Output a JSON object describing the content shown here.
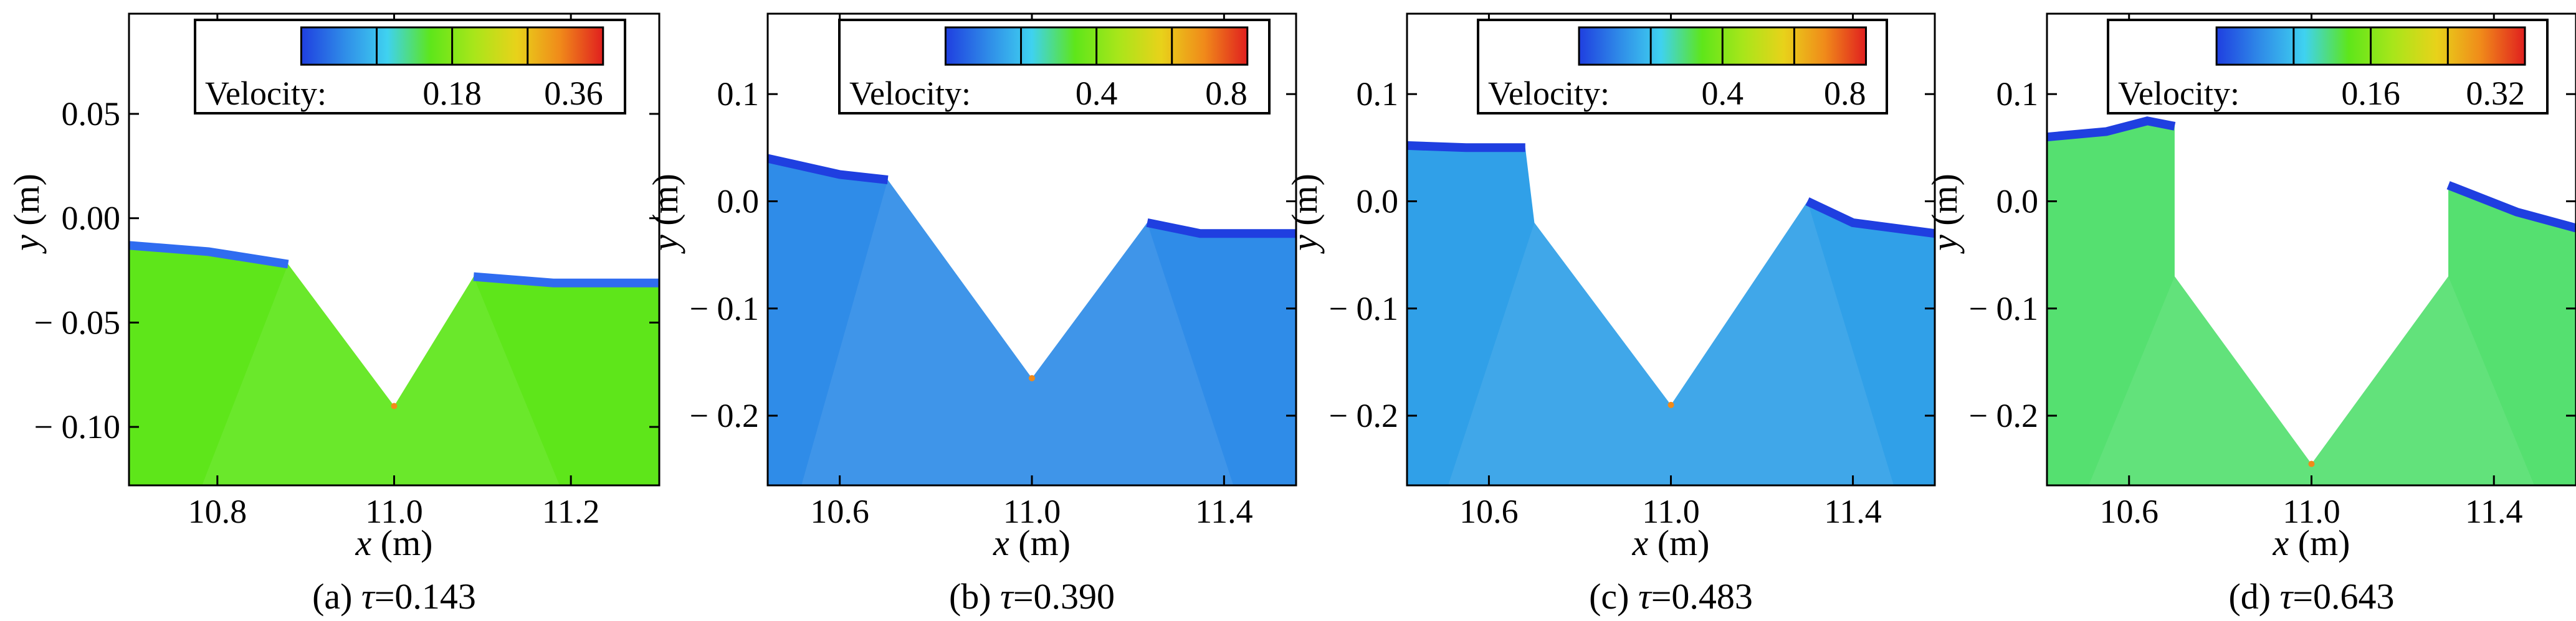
{
  "chart_data": [
    {
      "type": "heatmap",
      "caption_prefix": "(a) ",
      "caption_tau": "τ",
      "caption_value": "=0.143",
      "xlabel_var": "x",
      "xlabel_unit": " (m)",
      "ylabel_var": "y",
      "ylabel_unit": " (m)",
      "xlim": [
        10.7,
        11.3
      ],
      "ylim": [
        -0.128,
        0.098
      ],
      "xticks": [
        10.8,
        11.0,
        11.2
      ],
      "xtick_labels": [
        "10.8",
        "11.0",
        "11.2"
      ],
      "yticks": [
        0.05,
        0.0,
        -0.05,
        -0.1
      ],
      "ytick_labels": [
        "0.05",
        "0.00",
        "− 0.05",
        "− 0.10"
      ],
      "legend": {
        "title": "Velocity:",
        "ticks": [
          "0.18",
          "0.36"
        ],
        "range": [
          0,
          0.36
        ]
      },
      "colors": {
        "fill_main": "#5ee61a",
        "surface": "#2f6cf0"
      },
      "surface_left": [
        [
          10.7,
          -0.013
        ],
        [
          10.79,
          -0.016
        ],
        [
          10.88,
          -0.022
        ]
      ],
      "surface_right": [
        [
          11.09,
          -0.028
        ],
        [
          11.18,
          -0.031
        ],
        [
          11.3,
          -0.031
        ]
      ],
      "cavity": [
        [
          10.88,
          -0.022
        ],
        [
          11.0,
          -0.09
        ],
        [
          11.09,
          -0.028
        ]
      ]
    },
    {
      "type": "heatmap",
      "caption_prefix": "(b) ",
      "caption_tau": "τ",
      "caption_value": "=0.390",
      "xlabel_var": "x",
      "xlabel_unit": " (m)",
      "ylabel_var": "y",
      "ylabel_unit": " (m)",
      "xlim": [
        10.45,
        11.55
      ],
      "ylim": [
        -0.265,
        0.175
      ],
      "xticks": [
        10.6,
        11.0,
        11.4
      ],
      "xtick_labels": [
        "10.6",
        "11.0",
        "11.4"
      ],
      "yticks": [
        0.1,
        0.0,
        -0.1,
        -0.2
      ],
      "ytick_labels": [
        "0.1",
        "0.0",
        "− 0.1",
        "− 0.2"
      ],
      "legend": {
        "title": "Velocity:",
        "ticks": [
          "0.4",
          "0.8"
        ],
        "range": [
          0,
          0.8
        ]
      },
      "colors": {
        "fill_main": "#2f8ce8",
        "surface": "#1f3fe0"
      },
      "surface_left": [
        [
          10.45,
          0.04
        ],
        [
          10.6,
          0.025
        ],
        [
          10.7,
          0.02
        ]
      ],
      "surface_right": [
        [
          11.24,
          -0.02
        ],
        [
          11.35,
          -0.03
        ],
        [
          11.55,
          -0.03
        ]
      ],
      "cavity": [
        [
          10.7,
          0.02
        ],
        [
          11.0,
          -0.165
        ],
        [
          11.24,
          -0.02
        ]
      ]
    },
    {
      "type": "heatmap",
      "caption_prefix": "(c) ",
      "caption_tau": "τ",
      "caption_value": "=0.483",
      "xlabel_var": "x",
      "xlabel_unit": " (m)",
      "ylabel_var": "y",
      "ylabel_unit": " (m)",
      "xlim": [
        10.42,
        11.58
      ],
      "ylim": [
        -0.265,
        0.175
      ],
      "xticks": [
        10.6,
        11.0,
        11.4
      ],
      "xtick_labels": [
        "10.6",
        "11.0",
        "11.4"
      ],
      "yticks": [
        0.1,
        0.0,
        -0.1,
        -0.2
      ],
      "ytick_labels": [
        "0.1",
        "0.0",
        "− 0.1",
        "− 0.2"
      ],
      "legend": {
        "title": "Velocity:",
        "ticks": [
          "0.4",
          "0.8"
        ],
        "range": [
          0,
          0.8
        ]
      },
      "colors": {
        "fill_main": "#30a0e8",
        "surface": "#1f3fe0"
      },
      "surface_left": [
        [
          10.42,
          0.052
        ],
        [
          10.55,
          0.05
        ],
        [
          10.68,
          0.05
        ]
      ],
      "surface_right": [
        [
          11.3,
          0.0
        ],
        [
          11.4,
          -0.02
        ],
        [
          11.58,
          -0.03
        ]
      ],
      "cavity": [
        [
          10.7,
          -0.02
        ],
        [
          11.0,
          -0.19
        ],
        [
          11.3,
          0.0
        ]
      ]
    },
    {
      "type": "heatmap",
      "caption_prefix": "(d) ",
      "caption_tau": "τ",
      "caption_value": "=0.643",
      "xlabel_var": "x",
      "xlabel_unit": " (m)",
      "ylabel_var": "y",
      "ylabel_unit": " (m)",
      "xlim": [
        10.42,
        11.58
      ],
      "ylim": [
        -0.265,
        0.175
      ],
      "xticks": [
        10.6,
        11.0,
        11.4
      ],
      "xtick_labels": [
        "10.6",
        "11.0",
        "11.4"
      ],
      "yticks": [
        0.1,
        0.0,
        -0.1,
        -0.2
      ],
      "ytick_labels": [
        "0.1",
        "0.0",
        "− 0.1",
        "− 0.2"
      ],
      "legend": {
        "title": "Velocity:",
        "ticks": [
          "0.16",
          "0.32"
        ],
        "range": [
          0,
          0.32
        ]
      },
      "colors": {
        "fill_main": "#55e070",
        "surface": "#1f3fe0"
      },
      "surface_left": [
        [
          10.42,
          0.06
        ],
        [
          10.55,
          0.065
        ],
        [
          10.64,
          0.075
        ],
        [
          10.7,
          0.07
        ]
      ],
      "surface_right": [
        [
          11.3,
          0.015
        ],
        [
          11.45,
          -0.01
        ],
        [
          11.58,
          -0.025
        ]
      ],
      "cavity": [
        [
          10.7,
          -0.07
        ],
        [
          11.0,
          -0.245
        ],
        [
          11.3,
          -0.07
        ]
      ]
    }
  ],
  "colormap": [
    "#1f3fe0",
    "#2f8ce8",
    "#3fd2f0",
    "#5ee61a",
    "#a8e61a",
    "#e8d21a",
    "#f08a1a",
    "#e01f1f"
  ]
}
